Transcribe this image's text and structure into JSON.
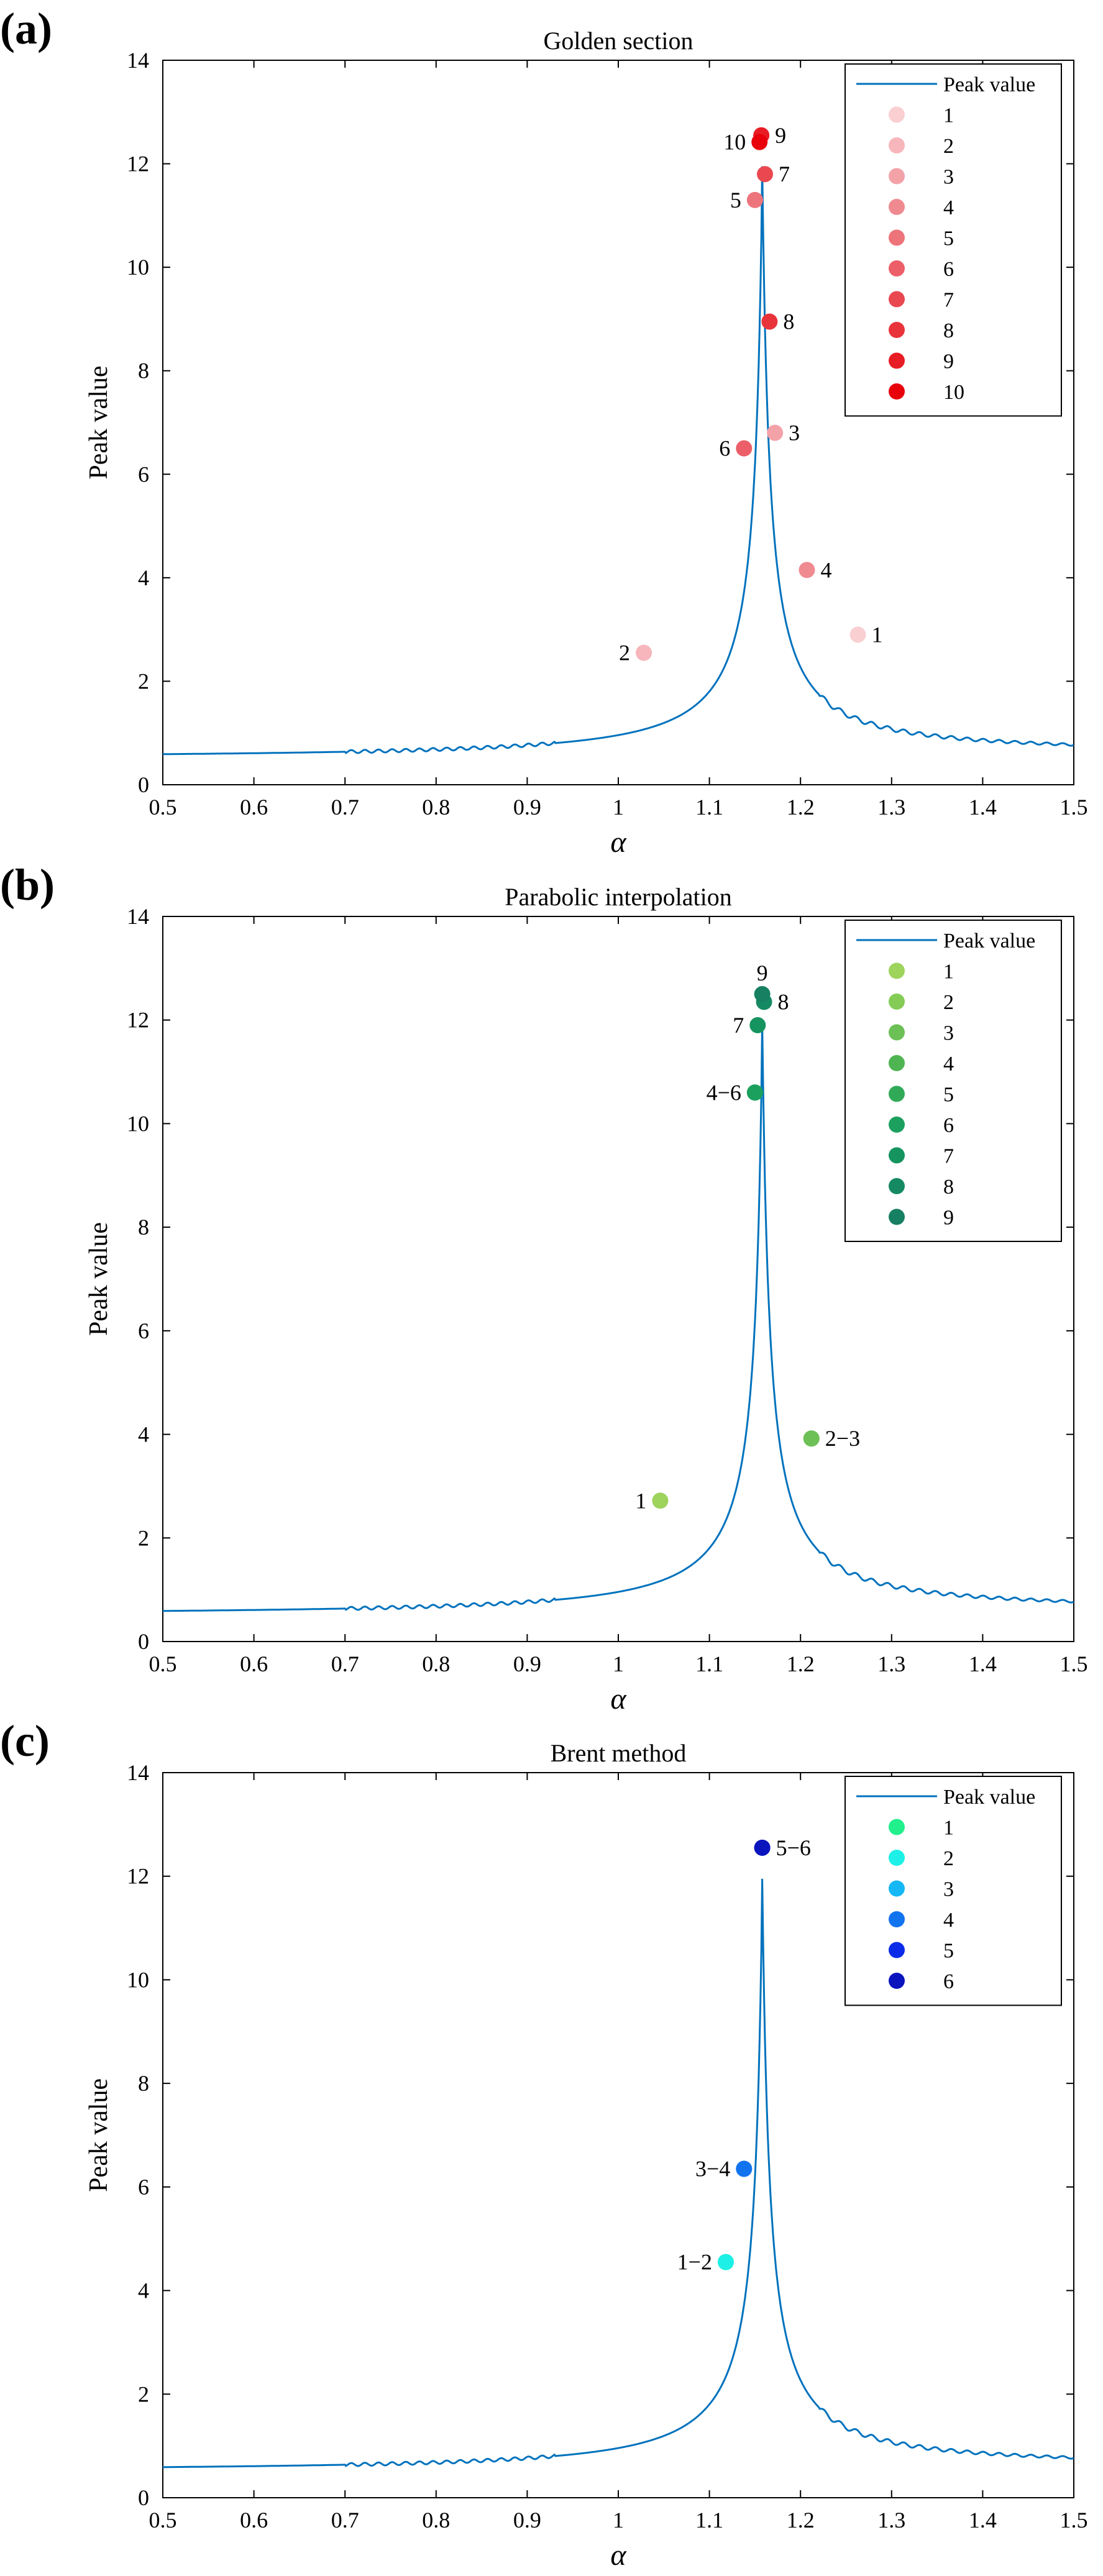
{
  "chart_data": [
    {
      "type": "line",
      "panel_label": "(a)",
      "title": "Golden section",
      "xlabel": "α",
      "ylabel": "Peak value",
      "xlim": [
        0.5,
        1.5
      ],
      "ylim": [
        0,
        14
      ],
      "xticks": [
        0.5,
        0.6,
        0.7,
        0.8,
        0.9,
        1,
        1.1,
        1.2,
        1.3,
        1.4,
        1.5
      ],
      "xtick_labels": [
        "0.5",
        "0.6",
        "0.7",
        "0.8",
        "0.9",
        "1",
        "1.1",
        "1.2",
        "1.3",
        "1.4",
        "1.5"
      ],
      "yticks": [
        0,
        2,
        4,
        6,
        8,
        10,
        12,
        14
      ],
      "ytick_labels": [
        "0",
        "2",
        "4",
        "6",
        "8",
        "10",
        "12",
        "14"
      ],
      "legend_position": "top-right",
      "line_series": {
        "name": "Peak value",
        "color": "#0072BD"
      },
      "points": [
        {
          "label": "1",
          "x": 1.263,
          "y": 2.9,
          "color": "#F9CFD2",
          "annotation": "1",
          "anno_side": "right"
        },
        {
          "label": "2",
          "x": 1.028,
          "y": 2.55,
          "color": "#F6B6BB",
          "annotation": "2",
          "anno_side": "left"
        },
        {
          "label": "3",
          "x": 1.172,
          "y": 6.8,
          "color": "#F3A2A8",
          "annotation": "3",
          "anno_side": "right"
        },
        {
          "label": "4",
          "x": 1.207,
          "y": 4.15,
          "color": "#F08A91",
          "annotation": "4",
          "anno_side": "right"
        },
        {
          "label": "5",
          "x": 1.15,
          "y": 11.3,
          "color": "#EE747C",
          "annotation": "5",
          "anno_side": "left"
        },
        {
          "label": "6",
          "x": 1.138,
          "y": 6.5,
          "color": "#EC5F68",
          "annotation": "6",
          "anno_side": "left"
        },
        {
          "label": "7",
          "x": 1.161,
          "y": 11.8,
          "color": "#EA4850",
          "annotation": "7",
          "anno_side": "right"
        },
        {
          "label": "8",
          "x": 1.166,
          "y": 8.95,
          "color": "#E8333B",
          "annotation": "8",
          "anno_side": "right"
        },
        {
          "label": "9",
          "x": 1.157,
          "y": 12.55,
          "color": "#E81C24",
          "annotation": "9",
          "anno_side": "right"
        },
        {
          "label": "10",
          "x": 1.155,
          "y": 12.42,
          "color": "#E8000B",
          "annotation": "10",
          "anno_side": "left"
        }
      ]
    },
    {
      "type": "line",
      "panel_label": "(b)",
      "title": "Parabolic interpolation",
      "xlabel": "α",
      "ylabel": "Peak value",
      "xlim": [
        0.5,
        1.5
      ],
      "ylim": [
        0,
        14
      ],
      "xticks": [
        0.5,
        0.6,
        0.7,
        0.8,
        0.9,
        1,
        1.1,
        1.2,
        1.3,
        1.4,
        1.5
      ],
      "xtick_labels": [
        "0.5",
        "0.6",
        "0.7",
        "0.8",
        "0.9",
        "1",
        "1.1",
        "1.2",
        "1.3",
        "1.4",
        "1.5"
      ],
      "yticks": [
        0,
        2,
        4,
        6,
        8,
        10,
        12,
        14
      ],
      "ytick_labels": [
        "0",
        "2",
        "4",
        "6",
        "8",
        "10",
        "12",
        "14"
      ],
      "legend_position": "top-right",
      "line_series": {
        "name": "Peak value",
        "color": "#0072BD"
      },
      "points": [
        {
          "label": "1",
          "x": 1.046,
          "y": 2.72,
          "color": "#9ED35C",
          "annotation": "1",
          "anno_side": "left"
        },
        {
          "label": "2",
          "x": 1.212,
          "y": 3.92,
          "color": "#84CC56",
          "annotation": "2−3",
          "anno_side": "right"
        },
        {
          "label": "3",
          "x": 1.212,
          "y": 3.92,
          "color": "#6CC055"
        },
        {
          "label": "4",
          "x": 1.15,
          "y": 10.6,
          "color": "#4FB552",
          "annotation": "4−6",
          "anno_side": "left"
        },
        {
          "label": "5",
          "x": 1.15,
          "y": 10.6,
          "color": "#31AA58"
        },
        {
          "label": "6",
          "x": 1.15,
          "y": 10.6,
          "color": "#1CA05E"
        },
        {
          "label": "7",
          "x": 1.153,
          "y": 11.9,
          "color": "#159460",
          "annotation": "7",
          "anno_side": "left"
        },
        {
          "label": "8",
          "x": 1.16,
          "y": 12.35,
          "color": "#158A62",
          "annotation": "8",
          "anno_side": "right"
        },
        {
          "label": "9",
          "x": 1.158,
          "y": 12.5,
          "color": "#178062",
          "annotation": "9",
          "anno_side": "top"
        }
      ]
    },
    {
      "type": "line",
      "panel_label": "(c)",
      "title": "Brent method",
      "xlabel": "α",
      "ylabel": "Peak value",
      "xlim": [
        0.5,
        1.5
      ],
      "ylim": [
        0,
        14
      ],
      "xticks": [
        0.5,
        0.6,
        0.7,
        0.8,
        0.9,
        1,
        1.1,
        1.2,
        1.3,
        1.4,
        1.5
      ],
      "xtick_labels": [
        "0.5",
        "0.6",
        "0.7",
        "0.8",
        "0.9",
        "1",
        "1.1",
        "1.2",
        "1.3",
        "1.4",
        "1.5"
      ],
      "yticks": [
        0,
        2,
        4,
        6,
        8,
        10,
        12,
        14
      ],
      "ytick_labels": [
        "0",
        "2",
        "4",
        "6",
        "8",
        "10",
        "12",
        "14"
      ],
      "legend_position": "top-right",
      "line_series": {
        "name": "Peak value",
        "color": "#0072BD"
      },
      "points": [
        {
          "label": "1",
          "x": 1.118,
          "y": 4.55,
          "color": "#21F08C",
          "annotation": "1−2",
          "anno_side": "left"
        },
        {
          "label": "2",
          "x": 1.118,
          "y": 4.55,
          "color": "#1DF0E6"
        },
        {
          "label": "3",
          "x": 1.138,
          "y": 6.35,
          "color": "#15B8F5",
          "annotation": "3−4",
          "anno_side": "left"
        },
        {
          "label": "4",
          "x": 1.138,
          "y": 6.35,
          "color": "#1273EE"
        },
        {
          "label": "5",
          "x": 1.158,
          "y": 12.55,
          "color": "#0A2CE8",
          "annotation": "5−6",
          "anno_side": "right"
        },
        {
          "label": "6",
          "x": 1.158,
          "y": 12.55,
          "color": "#0A15BE"
        }
      ]
    }
  ]
}
